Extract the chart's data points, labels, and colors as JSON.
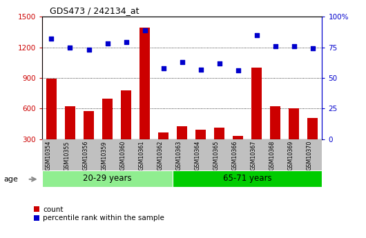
{
  "title": "GDS473 / 242134_at",
  "samples": [
    "GSM10354",
    "GSM10355",
    "GSM10356",
    "GSM10359",
    "GSM10360",
    "GSM10361",
    "GSM10362",
    "GSM10363",
    "GSM10364",
    "GSM10365",
    "GSM10366",
    "GSM10367",
    "GSM10368",
    "GSM10369",
    "GSM10370"
  ],
  "counts": [
    895,
    620,
    575,
    700,
    775,
    1390,
    365,
    430,
    395,
    415,
    330,
    1000,
    620,
    600,
    510
  ],
  "percentile": [
    82,
    75,
    73,
    78,
    79,
    89,
    58,
    63,
    57,
    62,
    56,
    85,
    76,
    76,
    74
  ],
  "group1_label": "20-29 years",
  "group2_label": "65-71 years",
  "group1_count": 7,
  "group2_count": 8,
  "ylim_left": [
    300,
    1500
  ],
  "ylim_right": [
    0,
    100
  ],
  "yticks_left": [
    300,
    600,
    900,
    1200,
    1500
  ],
  "yticks_right": [
    0,
    25,
    50,
    75,
    100
  ],
  "bar_color": "#cc0000",
  "dot_color": "#0000cc",
  "group1_color": "#90ee90",
  "group2_color": "#00cc00",
  "age_label": "age",
  "legend_count": "count",
  "legend_pct": "percentile rank within the sample",
  "grid_color": "black",
  "right_tick_color": "#0000cc",
  "left_tick_color": "#cc0000",
  "xtick_bg": "#c0c0c0"
}
